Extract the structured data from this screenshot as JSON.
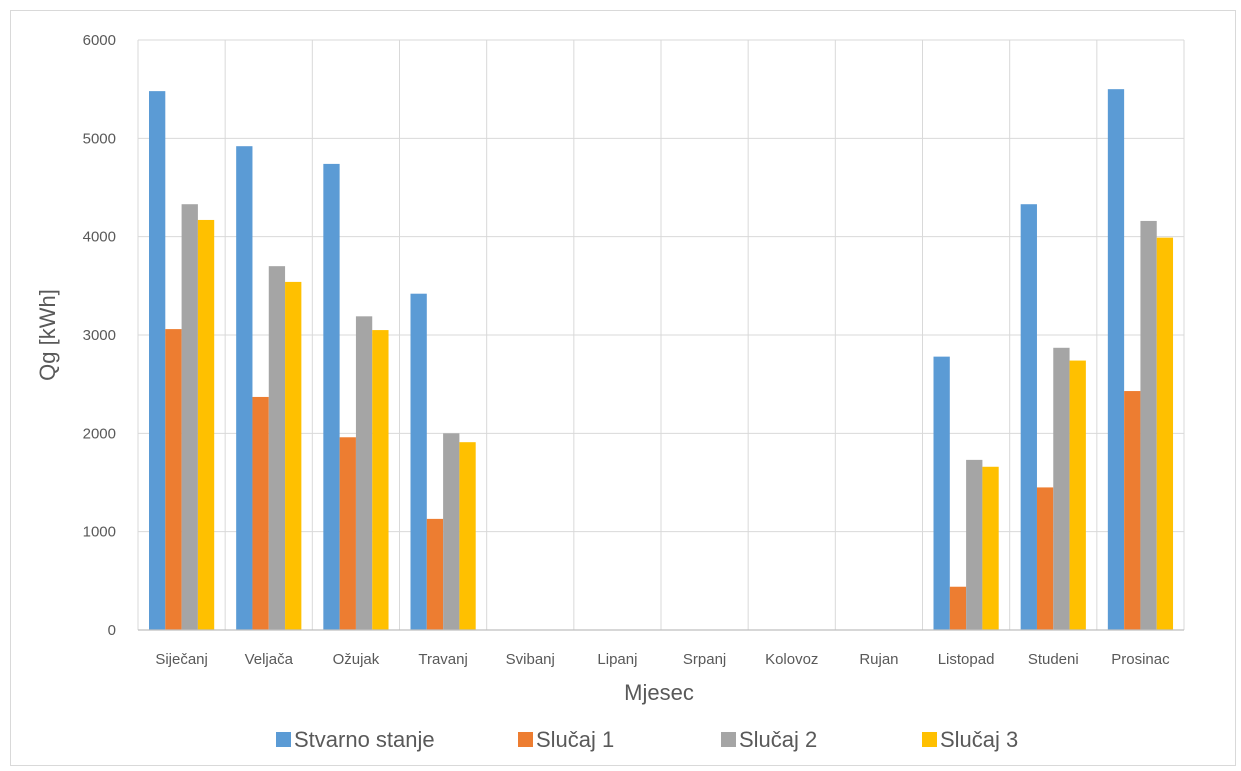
{
  "chart_data": {
    "type": "bar",
    "title": "",
    "xlabel": "Mjesec",
    "ylabel": "Qg [kWh]",
    "ylim": [
      0,
      6000
    ],
    "yticks": [
      0,
      1000,
      2000,
      3000,
      4000,
      5000,
      6000
    ],
    "grid": true,
    "legend_position": "bottom",
    "categories": [
      "Siječanj",
      "Veljača",
      "Ožujak",
      "Travanj",
      "Svibanj",
      "Lipanj",
      "Srpanj",
      "Kolovoz",
      "Rujan",
      "Listopad",
      "Studeni",
      "Prosinac"
    ],
    "series": [
      {
        "name": "Stvarno stanje",
        "color": "#5b9bd5",
        "values": [
          5480,
          4920,
          4740,
          3420,
          0,
          0,
          0,
          0,
          0,
          2780,
          4330,
          5500
        ]
      },
      {
        "name": "Slučaj 1",
        "color": "#ed7d31",
        "values": [
          3060,
          2370,
          1960,
          1130,
          0,
          0,
          0,
          0,
          0,
          440,
          1450,
          2430
        ]
      },
      {
        "name": "Slučaj 2",
        "color": "#a5a5a5",
        "values": [
          4330,
          3700,
          3190,
          2000,
          0,
          0,
          0,
          0,
          0,
          1730,
          2870,
          4160
        ]
      },
      {
        "name": "Slučaj 3",
        "color": "#ffc000",
        "values": [
          4170,
          3540,
          3050,
          1910,
          0,
          0,
          0,
          0,
          0,
          1660,
          2740,
          3990
        ]
      }
    ]
  }
}
